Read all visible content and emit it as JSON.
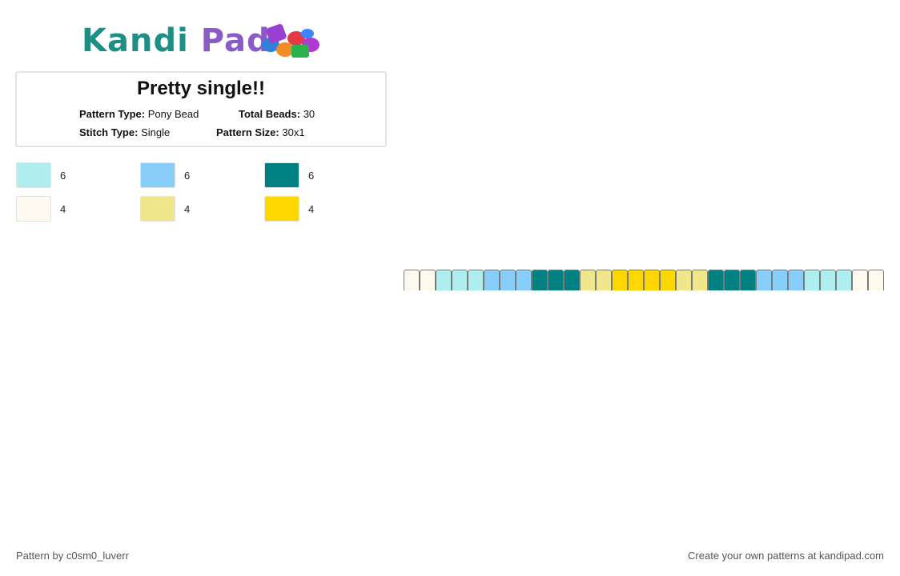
{
  "logo": {
    "part1": "Kandi",
    "part2": " Pad"
  },
  "pattern": {
    "title": "Pretty single!!",
    "type_label": "Pattern Type:",
    "type_value": "Pony Bead",
    "beads_label": "Total Beads:",
    "beads_value": "30",
    "stitch_label": "Stitch Type:",
    "stitch_value": "Single",
    "size_label": "Pattern Size:",
    "size_value": "30x1"
  },
  "legend": [
    {
      "color": "#AFEEEE",
      "count": "6"
    },
    {
      "color": "#87CEFA",
      "count": "6"
    },
    {
      "color": "#008080",
      "count": "6"
    },
    {
      "color": "#FFFAF0",
      "count": "4"
    },
    {
      "color": "#F0E68C",
      "count": "4"
    },
    {
      "color": "#FFD700",
      "count": "4"
    }
  ],
  "beads": [
    "#FFFAF0",
    "#FFFAF0",
    "#AFEEEE",
    "#AFEEEE",
    "#AFEEEE",
    "#87CEFA",
    "#87CEFA",
    "#87CEFA",
    "#008080",
    "#008080",
    "#008080",
    "#F0E68C",
    "#F0E68C",
    "#FFD700",
    "#FFD700",
    "#FFD700",
    "#FFD700",
    "#F0E68C",
    "#F0E68C",
    "#008080",
    "#008080",
    "#008080",
    "#87CEFA",
    "#87CEFA",
    "#87CEFA",
    "#AFEEEE",
    "#AFEEEE",
    "#AFEEEE",
    "#FFFAF0",
    "#FFFAF0"
  ],
  "footer": {
    "credit": "Pattern by c0sm0_luverr",
    "promo": "Create your own patterns at kandipad.com"
  }
}
